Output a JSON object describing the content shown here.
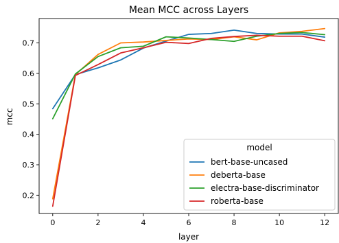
{
  "chart_data": {
    "type": "line",
    "title": "Mean MCC across Layers",
    "xlabel": "layer",
    "ylabel": "mcc",
    "xlim": [
      -0.6,
      12.6
    ],
    "ylim": [
      0.14,
      0.78
    ],
    "xticks": [
      0,
      2,
      4,
      6,
      8,
      10,
      12
    ],
    "yticks": [
      0.2,
      0.3,
      0.4,
      0.5,
      0.6,
      0.7
    ],
    "grid": false,
    "legend": {
      "title": "model",
      "placement": "lower-right"
    },
    "x": [
      0,
      1,
      2,
      3,
      4,
      5,
      6,
      7,
      8,
      9,
      10,
      11,
      12
    ],
    "series": [
      {
        "name": "bert-base-uncased",
        "color": "#1f77b4",
        "values": [
          0.484,
          0.596,
          0.618,
          0.644,
          0.683,
          0.706,
          0.728,
          0.731,
          0.742,
          0.731,
          0.729,
          0.729,
          0.719
        ]
      },
      {
        "name": "deberta-base",
        "color": "#ff7f0e",
        "values": [
          0.188,
          0.596,
          0.662,
          0.7,
          0.703,
          0.708,
          0.713,
          0.711,
          0.72,
          0.71,
          0.733,
          0.738,
          0.747
        ]
      },
      {
        "name": "electra-base-discriminator",
        "color": "#2ca02c",
        "values": [
          0.451,
          0.598,
          0.655,
          0.684,
          0.689,
          0.72,
          0.716,
          0.711,
          0.705,
          0.722,
          0.731,
          0.734,
          0.727
        ]
      },
      {
        "name": "roberta-base",
        "color": "#d62728",
        "values": [
          0.164,
          0.593,
          0.629,
          0.667,
          0.684,
          0.702,
          0.698,
          0.715,
          0.721,
          0.725,
          0.722,
          0.722,
          0.707
        ]
      }
    ]
  }
}
